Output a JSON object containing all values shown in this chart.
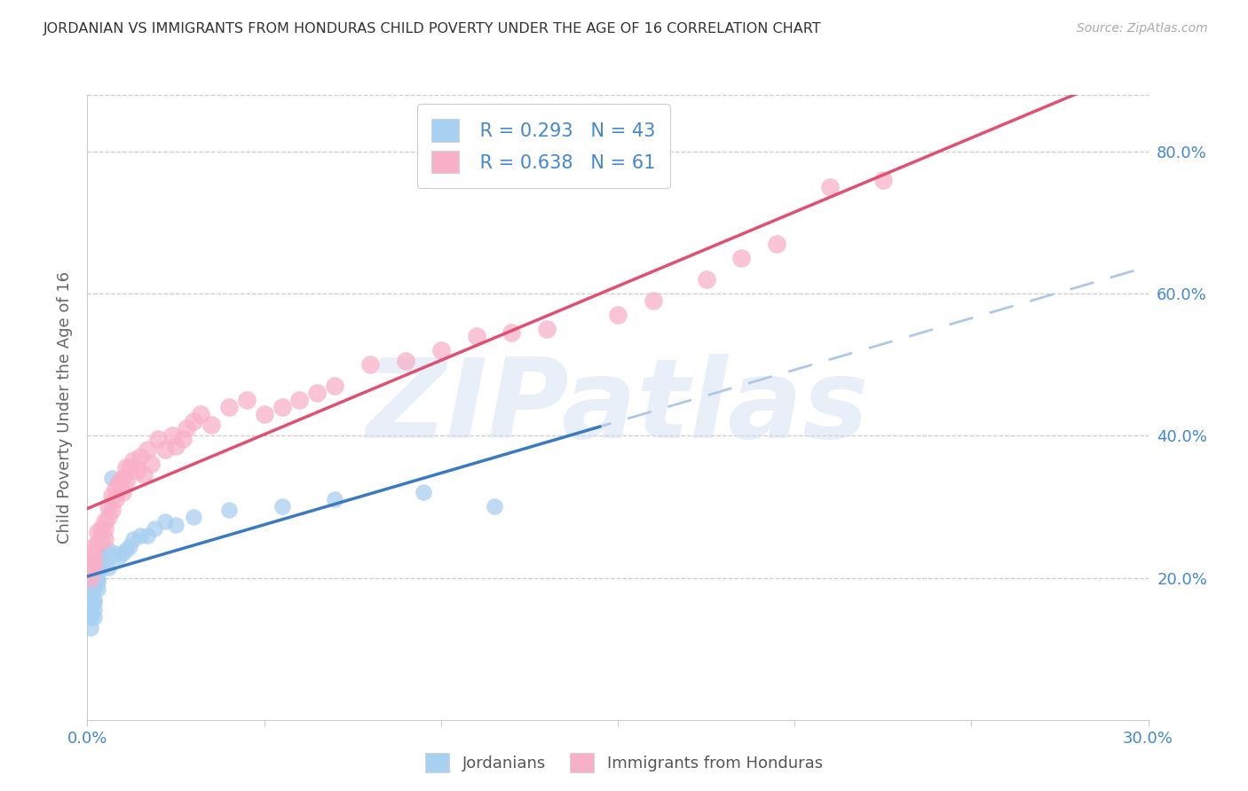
{
  "title": "JORDANIAN VS IMMIGRANTS FROM HONDURAS CHILD POVERTY UNDER THE AGE OF 16 CORRELATION CHART",
  "source": "Source: ZipAtlas.com",
  "ylabel": "Child Poverty Under the Age of 16",
  "xlim": [
    0.0,
    0.3
  ],
  "ylim": [
    0.0,
    0.88
  ],
  "xtick_labels_only": [
    0.0,
    0.3
  ],
  "xtick_marks": [
    0.0,
    0.05,
    0.1,
    0.15,
    0.2,
    0.25,
    0.3
  ],
  "yticks_right": [
    0.2,
    0.4,
    0.6,
    0.8
  ],
  "watermark": "ZIPatlas",
  "legend_blue_R": "0.293",
  "legend_blue_N": "43",
  "legend_pink_R": "0.638",
  "legend_pink_N": "61",
  "blue_scatter_color": "#a8d0f0",
  "pink_scatter_color": "#f8b0c8",
  "blue_line_color": "#3a7abf",
  "pink_line_color": "#e05070",
  "dashed_line_color": "#b0c8e8",
  "axis_label_color": "#4488cc",
  "title_color": "#333333",
  "ylabel_color": "#666666",
  "grid_color": "#cccccc",
  "jordanians_x": [
    0.001,
    0.001,
    0.001,
    0.001,
    0.001,
    0.001,
    0.001,
    0.002,
    0.002,
    0.002,
    0.002,
    0.002,
    0.002,
    0.003,
    0.003,
    0.003,
    0.003,
    0.003,
    0.004,
    0.004,
    0.004,
    0.005,
    0.005,
    0.006,
    0.006,
    0.007,
    0.008,
    0.009,
    0.01,
    0.011,
    0.012,
    0.013,
    0.015,
    0.017,
    0.019,
    0.022,
    0.025,
    0.03,
    0.04,
    0.055,
    0.07,
    0.095,
    0.115
  ],
  "jordanians_y": [
    0.175,
    0.18,
    0.16,
    0.15,
    0.145,
    0.145,
    0.13,
    0.19,
    0.185,
    0.17,
    0.165,
    0.155,
    0.145,
    0.22,
    0.21,
    0.2,
    0.195,
    0.185,
    0.23,
    0.225,
    0.215,
    0.235,
    0.22,
    0.24,
    0.215,
    0.34,
    0.235,
    0.23,
    0.235,
    0.24,
    0.245,
    0.255,
    0.26,
    0.26,
    0.27,
    0.28,
    0.275,
    0.285,
    0.295,
    0.3,
    0.31,
    0.32,
    0.3
  ],
  "hondurans_x": [
    0.001,
    0.001,
    0.001,
    0.001,
    0.002,
    0.002,
    0.002,
    0.003,
    0.003,
    0.004,
    0.004,
    0.005,
    0.005,
    0.005,
    0.006,
    0.006,
    0.007,
    0.007,
    0.008,
    0.008,
    0.009,
    0.01,
    0.01,
    0.011,
    0.011,
    0.012,
    0.013,
    0.014,
    0.015,
    0.016,
    0.017,
    0.018,
    0.02,
    0.022,
    0.024,
    0.025,
    0.027,
    0.028,
    0.03,
    0.032,
    0.035,
    0.04,
    0.045,
    0.05,
    0.055,
    0.06,
    0.065,
    0.07,
    0.08,
    0.09,
    0.1,
    0.11,
    0.12,
    0.13,
    0.15,
    0.16,
    0.175,
    0.185,
    0.195,
    0.21,
    0.225
  ],
  "hondurans_y": [
    0.225,
    0.22,
    0.21,
    0.2,
    0.245,
    0.235,
    0.22,
    0.265,
    0.25,
    0.27,
    0.255,
    0.28,
    0.27,
    0.255,
    0.3,
    0.285,
    0.315,
    0.295,
    0.325,
    0.31,
    0.335,
    0.34,
    0.32,
    0.355,
    0.335,
    0.355,
    0.365,
    0.35,
    0.37,
    0.345,
    0.38,
    0.36,
    0.395,
    0.38,
    0.4,
    0.385,
    0.395,
    0.41,
    0.42,
    0.43,
    0.415,
    0.44,
    0.45,
    0.43,
    0.44,
    0.45,
    0.46,
    0.47,
    0.5,
    0.505,
    0.52,
    0.54,
    0.545,
    0.55,
    0.57,
    0.59,
    0.62,
    0.65,
    0.67,
    0.75,
    0.76
  ]
}
